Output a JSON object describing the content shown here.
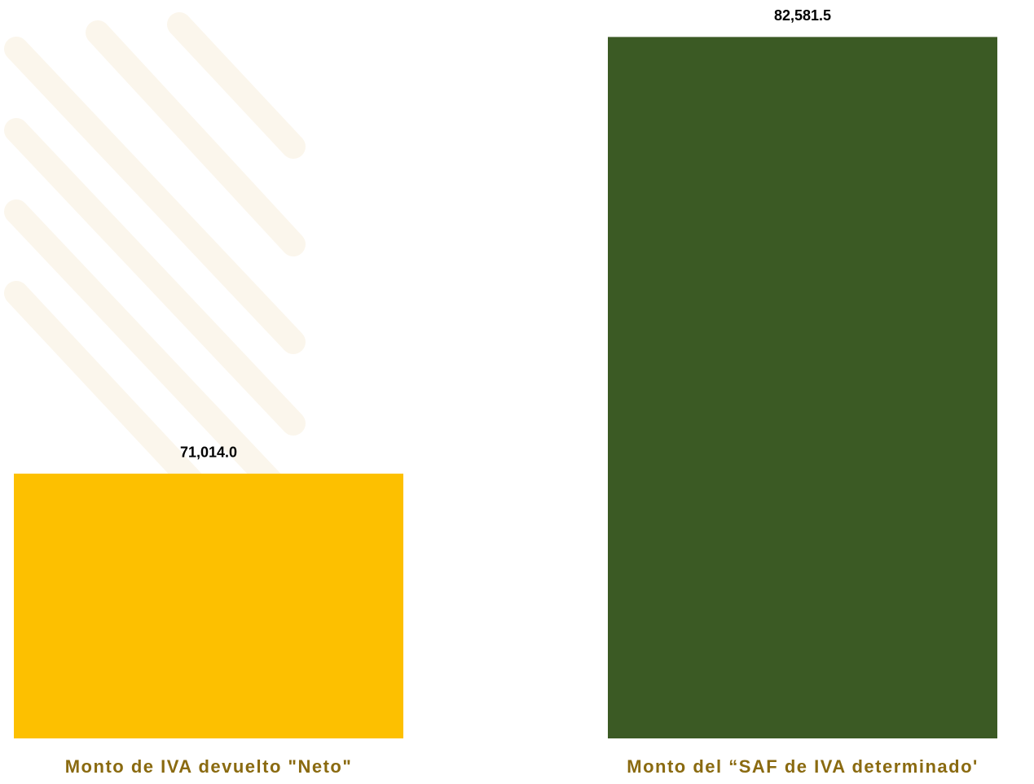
{
  "chart_data": {
    "type": "bar",
    "categories": [
      "Monto de IVA devuelto \"Neto\"",
      "Monto del “SAF de IVA determinado'"
    ],
    "values": [
      71014.0,
      82581.5
    ],
    "value_labels": [
      "71,014.0",
      "82,581.5"
    ],
    "colors": [
      "#fdc000",
      "#3b5a24"
    ],
    "ylim": [
      64000,
      83000
    ]
  }
}
